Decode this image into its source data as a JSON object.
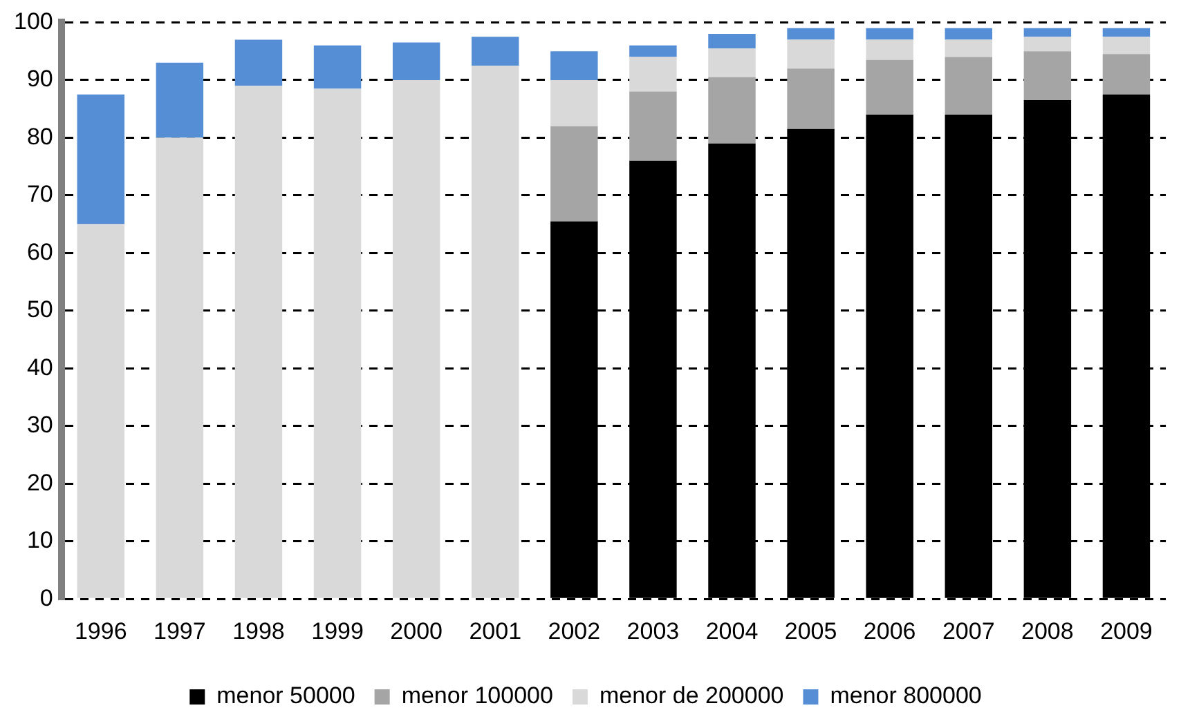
{
  "chart_data": {
    "type": "bar",
    "stacked": true,
    "categories": [
      "1996",
      "1997",
      "1998",
      "1999",
      "2000",
      "2001",
      "2002",
      "2003",
      "2004",
      "2005",
      "2006",
      "2007",
      "2008",
      "2009"
    ],
    "series": [
      {
        "name": "menor 50000",
        "color": "#000000",
        "values": [
          null,
          null,
          null,
          null,
          null,
          null,
          65.5,
          76,
          79,
          81.5,
          84,
          84,
          86.5,
          87.5
        ]
      },
      {
        "name": "menor 100000",
        "color": "#a5a5a5",
        "values": [
          null,
          null,
          null,
          null,
          null,
          null,
          16.5,
          12,
          11.5,
          10.5,
          9.5,
          10,
          8.5,
          7
        ]
      },
      {
        "name": "menor de 200000",
        "color": "#d9d9d9",
        "values": [
          65,
          80,
          89,
          88.5,
          90,
          92.5,
          8,
          6,
          5,
          5,
          3.5,
          3,
          2.5,
          3
        ]
      },
      {
        "name": "menor 800000",
        "color": "#558ed5",
        "values": [
          22.5,
          13,
          8,
          7.5,
          6.5,
          5,
          5,
          2,
          2.5,
          2,
          2,
          2,
          1.5,
          1.5
        ]
      }
    ],
    "ylim": [
      0,
      100
    ],
    "yticks": [
      0,
      10,
      20,
      30,
      40,
      50,
      60,
      70,
      80,
      90,
      100
    ],
    "grid": "y",
    "legend": "bottom"
  }
}
